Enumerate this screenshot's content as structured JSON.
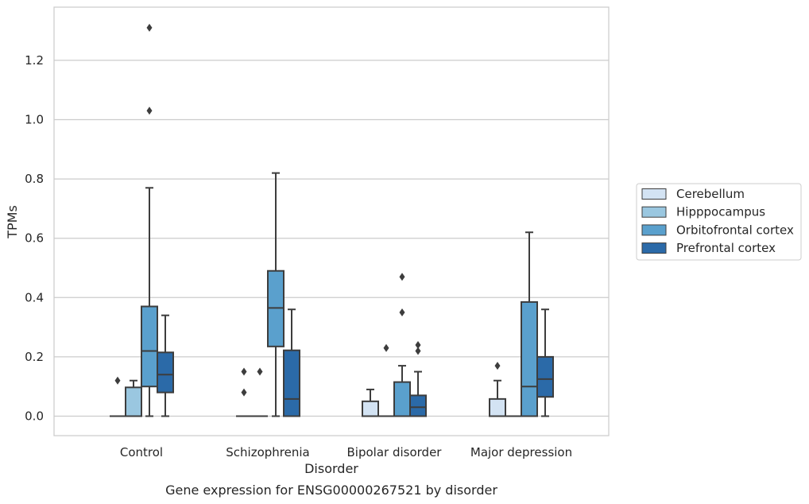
{
  "chart_data": {
    "type": "box",
    "caption": "Gene expression for ENSG00000267521 by disorder",
    "xlabel": "Disorder",
    "ylabel": "TPMs",
    "ylim": [
      -0.065,
      1.38
    ],
    "yticks": [
      "0.0",
      "0.2",
      "0.4",
      "0.6",
      "0.8",
      "1.0",
      "1.2"
    ],
    "ytick_values": [
      0.0,
      0.2,
      0.4,
      0.6,
      0.8,
      1.0,
      1.2
    ],
    "grid": "horizontal",
    "legend_position": "right",
    "categories": [
      "Control",
      "Schizophrenia",
      "Bipolar disorder",
      "Major depression"
    ],
    "series": [
      {
        "name": "Cerebellum",
        "color": "#d3e3f3",
        "boxes": [
          {
            "q1": 0.0,
            "median": 0.0,
            "q3": 0.0,
            "whisker_low": 0.0,
            "whisker_high": 0.0,
            "outliers": [
              0.12
            ]
          },
          {
            "q1": 0.0,
            "median": 0.0,
            "q3": 0.0,
            "whisker_low": 0.0,
            "whisker_high": 0.0,
            "outliers": [
              0.08,
              0.15
            ]
          },
          {
            "q1": 0.0,
            "median": 0.0,
            "q3": 0.05,
            "whisker_low": 0.0,
            "whisker_high": 0.09,
            "outliers": []
          },
          {
            "q1": 0.0,
            "median": 0.0,
            "q3": 0.058,
            "whisker_low": 0.0,
            "whisker_high": 0.12,
            "outliers": [
              0.17
            ]
          }
        ]
      },
      {
        "name": "Hipppocampus",
        "color": "#9ac7e0",
        "boxes": [
          {
            "q1": 0.0,
            "median": 0.0,
            "q3": 0.097,
            "whisker_low": 0.0,
            "whisker_high": 0.12,
            "outliers": []
          },
          {
            "q1": 0.0,
            "median": 0.0,
            "q3": 0.0,
            "whisker_low": 0.0,
            "whisker_high": 0.0,
            "outliers": [
              0.15
            ]
          },
          {
            "q1": 0.0,
            "median": 0.0,
            "q3": 0.0,
            "whisker_low": 0.0,
            "whisker_high": 0.0,
            "outliers": [
              0.23
            ]
          },
          {
            "q1": 0.0,
            "median": 0.0,
            "q3": 0.0,
            "whisker_low": 0.0,
            "whisker_high": 0.0,
            "outliers": []
          }
        ]
      },
      {
        "name": "Orbitofrontal cortex",
        "color": "#5aa0cd",
        "boxes": [
          {
            "q1": 0.1,
            "median": 0.22,
            "q3": 0.37,
            "whisker_low": 0.0,
            "whisker_high": 0.77,
            "outliers": [
              1.03,
              1.31
            ]
          },
          {
            "q1": 0.235,
            "median": 0.365,
            "q3": 0.49,
            "whisker_low": 0.0,
            "whisker_high": 0.82,
            "outliers": []
          },
          {
            "q1": 0.0,
            "median": 0.0,
            "q3": 0.115,
            "whisker_low": 0.0,
            "whisker_high": 0.17,
            "outliers": [
              0.35,
              0.47
            ]
          },
          {
            "q1": 0.0,
            "median": 0.1,
            "q3": 0.385,
            "whisker_low": 0.0,
            "whisker_high": 0.62,
            "outliers": []
          }
        ]
      },
      {
        "name": "Prefrontal cortex",
        "color": "#2b6aa8",
        "boxes": [
          {
            "q1": 0.08,
            "median": 0.14,
            "q3": 0.215,
            "whisker_low": 0.0,
            "whisker_high": 0.34,
            "outliers": []
          },
          {
            "q1": 0.0,
            "median": 0.058,
            "q3": 0.222,
            "whisker_low": 0.0,
            "whisker_high": 0.36,
            "outliers": []
          },
          {
            "q1": 0.0,
            "median": 0.03,
            "q3": 0.07,
            "whisker_low": 0.0,
            "whisker_high": 0.15,
            "outliers": [
              0.22,
              0.24
            ]
          },
          {
            "q1": 0.065,
            "median": 0.125,
            "q3": 0.2,
            "whisker_low": 0.0,
            "whisker_high": 0.36,
            "outliers": []
          }
        ]
      }
    ]
  }
}
